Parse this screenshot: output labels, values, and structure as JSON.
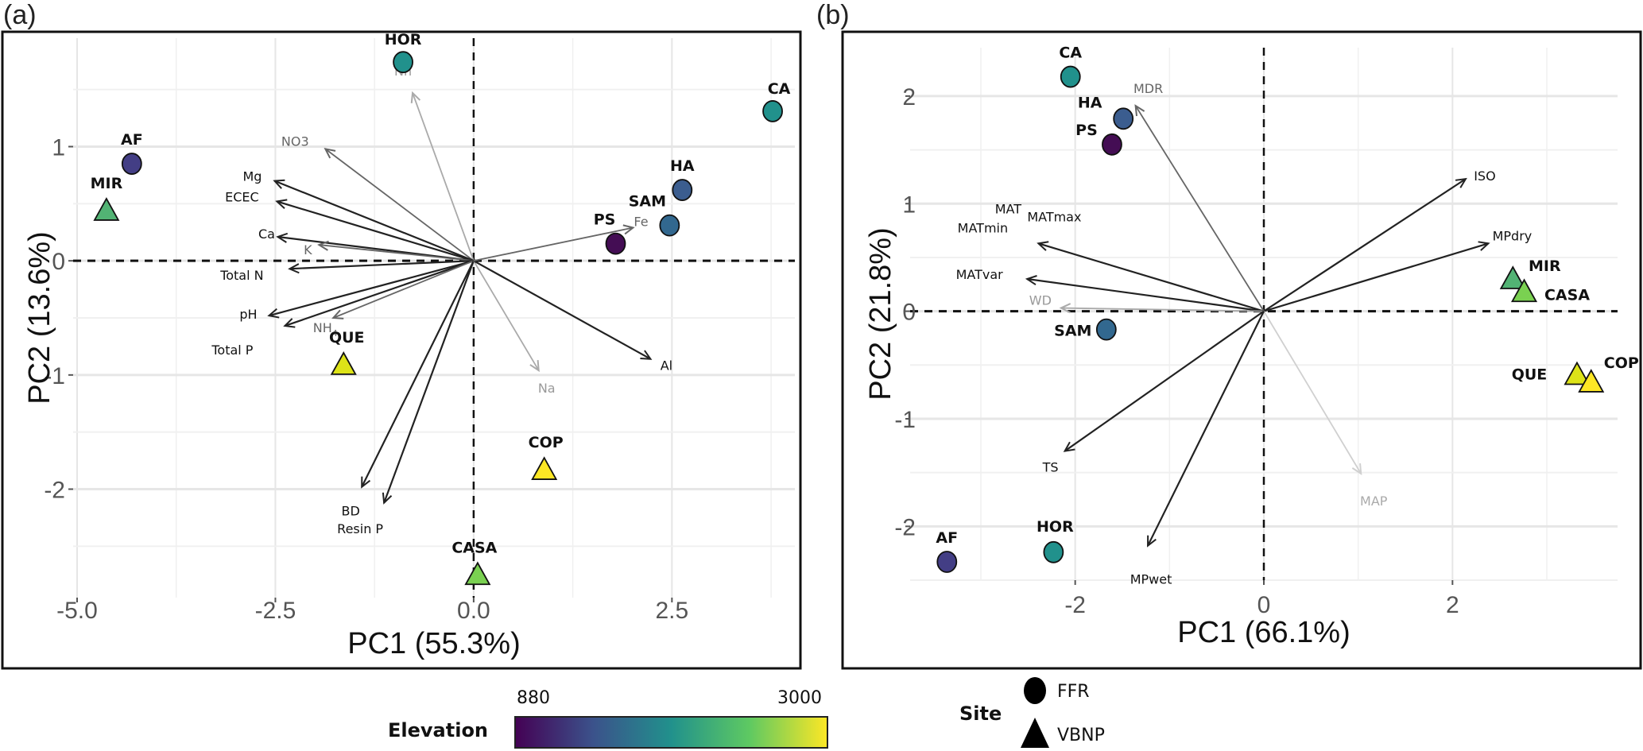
{
  "figure": {
    "legend": {
      "elevation": {
        "title": "Elevation",
        "min_label": "880",
        "max_label": "3000",
        "colors": [
          "#440154",
          "#3b528b",
          "#21918c",
          "#5ec962",
          "#fde725"
        ]
      },
      "site": {
        "title": "Site",
        "entries": [
          {
            "label": "FFR",
            "shape": "circle"
          },
          {
            "label": "VBNP",
            "shape": "triangle"
          }
        ]
      }
    }
  },
  "chart_data": [
    {
      "type": "scatter",
      "panel_tag": "(a)",
      "title": "",
      "xlabel": "PC1 (55.3%)",
      "ylabel": "PC2 (13.6%)",
      "xlim": [
        -5.05,
        4.05
      ],
      "ylim": [
        -2.95,
        1.95
      ],
      "xticks": [
        -5.0,
        -2.5,
        0.0,
        2.5
      ],
      "xtick_labels": [
        "-5.0",
        "-2.5",
        "0.0",
        "2.5"
      ],
      "yticks": [
        -2,
        -1,
        0,
        1
      ],
      "ytick_labels": [
        "-2",
        "-1",
        "0",
        "1"
      ],
      "grid": true,
      "sites": [
        {
          "label": "HOR",
          "x": -0.89,
          "y": 1.74,
          "shape": "circle",
          "color": "#21918c"
        },
        {
          "label": "CA",
          "x": 3.77,
          "y": 1.31,
          "shape": "circle",
          "color": "#21918c"
        },
        {
          "label": "AF",
          "x": -4.31,
          "y": 0.85,
          "shape": "circle",
          "color": "#433e85"
        },
        {
          "label": "MIR",
          "x": -4.63,
          "y": 0.44,
          "shape": "triangle",
          "color": "#52b374"
        },
        {
          "label": "HA",
          "x": 2.63,
          "y": 0.62,
          "shape": "circle",
          "color": "#3b5d8f"
        },
        {
          "label": "SAM",
          "x": 2.47,
          "y": 0.31,
          "shape": "circle",
          "color": "#32688f"
        },
        {
          "label": "PS",
          "x": 1.79,
          "y": 0.15,
          "shape": "circle",
          "color": "#440d54"
        },
        {
          "label": "QUE",
          "x": -1.64,
          "y": -0.91,
          "shape": "triangle",
          "color": "#dde318"
        },
        {
          "label": "COP",
          "x": 0.89,
          "y": -1.83,
          "shape": "triangle",
          "color": "#fde725"
        },
        {
          "label": "CASA",
          "x": 0.05,
          "y": -2.75,
          "shape": "triangle",
          "color": "#7ad151"
        }
      ],
      "loadings": [
        {
          "label": "Nn",
          "x": -0.77,
          "y": 1.47,
          "shade": "light"
        },
        {
          "label": "NO3",
          "x": -1.87,
          "y": 0.98,
          "shade": "mid"
        },
        {
          "label": "Mg",
          "x": -2.51,
          "y": 0.7,
          "shade": "dark"
        },
        {
          "label": "ECEC",
          "x": -2.48,
          "y": 0.52,
          "shade": "dark"
        },
        {
          "label": "Ca",
          "x": -2.47,
          "y": 0.21,
          "shade": "dark"
        },
        {
          "label": "K",
          "x": -1.95,
          "y": 0.14,
          "shade": "mid"
        },
        {
          "label": "Total N",
          "x": -2.32,
          "y": -0.07,
          "shade": "dark"
        },
        {
          "label": "pH",
          "x": -2.58,
          "y": -0.48,
          "shade": "dark"
        },
        {
          "label": "Total P",
          "x": -2.38,
          "y": -0.57,
          "shade": "dark"
        },
        {
          "label": "NH4",
          "x": -1.77,
          "y": -0.5,
          "shade": "mid"
        },
        {
          "label": "BD",
          "x": -1.41,
          "y": -1.98,
          "shade": "dark"
        },
        {
          "label": "Resin P",
          "x": -1.13,
          "y": -2.12,
          "shade": "dark"
        },
        {
          "label": "Na",
          "x": 0.82,
          "y": -0.96,
          "shade": "light"
        },
        {
          "label": "Al",
          "x": 2.23,
          "y": -0.86,
          "shade": "dark"
        },
        {
          "label": "Fe",
          "x": 2.01,
          "y": 0.29,
          "shade": "mid"
        }
      ]
    },
    {
      "type": "scatter",
      "panel_tag": "(b)",
      "title": "",
      "xlabel": "PC1 (66.1%)",
      "ylabel": "PC2 (21.8%)",
      "xlim": [
        -3.75,
        3.75
      ],
      "ylim": [
        -2.5,
        2.45
      ],
      "xticks": [
        -2,
        0,
        2
      ],
      "xtick_labels": [
        "-2",
        "0",
        "2"
      ],
      "yticks": [
        -2,
        -1,
        0,
        1,
        2
      ],
      "ytick_labels": [
        "-2",
        "-1",
        "0",
        "1",
        "2"
      ],
      "grid": true,
      "sites": [
        {
          "label": "CA",
          "x": -2.05,
          "y": 2.18,
          "shape": "circle",
          "color": "#21918c"
        },
        {
          "label": "HA",
          "x": -1.49,
          "y": 1.79,
          "shape": "circle",
          "color": "#3b5d8f"
        },
        {
          "label": "PS",
          "x": -1.61,
          "y": 1.55,
          "shape": "circle",
          "color": "#440d54"
        },
        {
          "label": "SAM",
          "x": -1.67,
          "y": -0.17,
          "shape": "circle",
          "color": "#32688f"
        },
        {
          "label": "AF",
          "x": -3.36,
          "y": -2.33,
          "shape": "circle",
          "color": "#433e85"
        },
        {
          "label": "HOR",
          "x": -2.23,
          "y": -2.24,
          "shape": "circle",
          "color": "#21918c"
        },
        {
          "label": "MIR",
          "x": 2.64,
          "y": 0.3,
          "shape": "triangle",
          "color": "#52b374"
        },
        {
          "label": "CASA",
          "x": 2.76,
          "y": 0.18,
          "shape": "triangle",
          "color": "#7ad151"
        },
        {
          "label": "QUE",
          "x": 3.32,
          "y": -0.59,
          "shape": "triangle",
          "color": "#dde318"
        },
        {
          "label": "COP",
          "x": 3.47,
          "y": -0.66,
          "shape": "triangle",
          "color": "#fde725"
        }
      ],
      "loadings": [
        {
          "label": "MDR",
          "x": -1.36,
          "y": 1.91,
          "shade": "mid"
        },
        {
          "label": "ISO",
          "x": 2.14,
          "y": 1.23,
          "shade": "dark"
        },
        {
          "label": "MAT",
          "x": -2.39,
          "y": 0.63,
          "shade": "dark"
        },
        {
          "label": "MATmin",
          "x": -2.39,
          "y": 0.63,
          "shade": "dark"
        },
        {
          "label": "MATmax",
          "x": -2.39,
          "y": 0.63,
          "shade": "dark"
        },
        {
          "label": "MPdry",
          "x": 2.38,
          "y": 0.63,
          "shade": "dark"
        },
        {
          "label": "MATvar",
          "x": -2.51,
          "y": 0.3,
          "shade": "dark"
        },
        {
          "label": "WD",
          "x": -2.15,
          "y": 0.03,
          "shade": "light"
        },
        {
          "label": "TS",
          "x": -2.11,
          "y": -1.3,
          "shade": "dark"
        },
        {
          "label": "MAP",
          "x": 1.03,
          "y": -1.51,
          "shade": "faint"
        },
        {
          "label": "MPwet",
          "x": -1.23,
          "y": -2.18,
          "shade": "dark"
        }
      ]
    }
  ]
}
